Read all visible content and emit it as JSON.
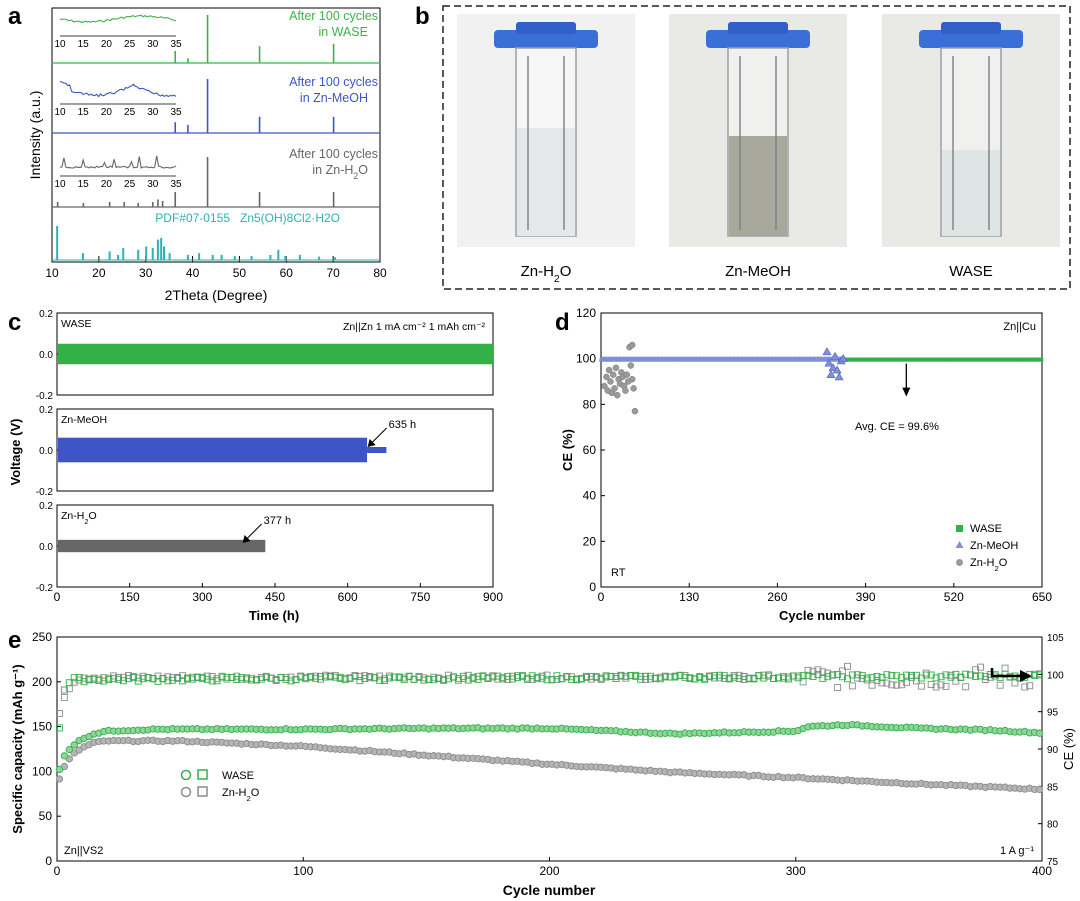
{
  "panel_labels": [
    "a",
    "b",
    "c",
    "d",
    "e"
  ],
  "chart_data": [
    {
      "panel": "a",
      "type": "line",
      "xlabel": "2Theta (Degree)",
      "ylabel": "Intensity (a.u.)",
      "xlim": [
        10,
        80
      ],
      "xticks": [
        "10",
        "20",
        "30",
        "40",
        "50",
        "60",
        "70",
        "80"
      ],
      "inset_xticks": [
        "10",
        "15",
        "20",
        "25",
        "30",
        "35"
      ],
      "series": [
        {
          "name": "After 100 cycles\nin WASE",
          "line1": "After 100 cycles",
          "line2": "in WASE",
          "color": "#3cb34a",
          "peaks": [
            [
              36.3,
              0.25
            ],
            [
              43.2,
              1.0
            ],
            [
              54.3,
              0.35
            ],
            [
              70.1,
              0.4
            ],
            [
              39.0,
              0.1
            ]
          ]
        },
        {
          "name": "After 100 cycles\nin Zn-MeOH",
          "line1": "After 100 cycles",
          "line2": "in Zn-MeOH",
          "color": "#3e55c8",
          "peaks": [
            [
              36.3,
              0.2
            ],
            [
              39.0,
              0.15
            ],
            [
              43.2,
              1.0
            ],
            [
              54.3,
              0.3
            ],
            [
              70.1,
              0.3
            ]
          ]
        },
        {
          "name": "After 100 cycles\nin Zn-H2O",
          "line1": "After 100 cycles",
          "line2": "in Zn-H",
          "sub": "2",
          "line2b": "O",
          "color": "#666666",
          "peaks": [
            [
              11.2,
              0.1
            ],
            [
              16.7,
              0.08
            ],
            [
              22.3,
              0.1
            ],
            [
              25.4,
              0.1
            ],
            [
              28.4,
              0.08
            ],
            [
              31.5,
              0.1
            ],
            [
              32.6,
              0.15
            ],
            [
              33.6,
              0.12
            ],
            [
              36.3,
              0.3
            ],
            [
              43.2,
              1.0
            ],
            [
              54.3,
              0.3
            ],
            [
              70.1,
              0.3
            ]
          ]
        }
      ],
      "reference": {
        "name": "PDF#07-0155",
        "formula": "Zn5(OH)8Cl2·H2O",
        "color": "#2ab3b3",
        "peaks": [
          [
            11.1,
            1.0
          ],
          [
            16.6,
            0.2
          ],
          [
            22.3,
            0.25
          ],
          [
            24.1,
            0.15
          ],
          [
            25.2,
            0.35
          ],
          [
            28.4,
            0.3
          ],
          [
            30.1,
            0.4
          ],
          [
            31.5,
            0.35
          ],
          [
            32.6,
            0.6
          ],
          [
            33.3,
            0.65
          ],
          [
            33.9,
            0.4
          ],
          [
            35.1,
            0.2
          ],
          [
            39.0,
            0.15
          ],
          [
            41.4,
            0.2
          ],
          [
            44.3,
            0.15
          ],
          [
            46.2,
            0.15
          ],
          [
            49.0,
            0.12
          ],
          [
            52.6,
            0.12
          ],
          [
            56.6,
            0.15
          ],
          [
            58.3,
            0.3
          ],
          [
            59.8,
            0.12
          ],
          [
            62.9,
            0.15
          ],
          [
            67.0,
            0.1
          ],
          [
            70.4,
            0.08
          ]
        ]
      }
    },
    {
      "panel": "c",
      "type": "line",
      "xlabel": "Time (h)",
      "ylabel": "Voltage (V)",
      "xlim": [
        0,
        900
      ],
      "ylim": [
        -0.2,
        0.2
      ],
      "xticks": [
        "0",
        "150",
        "300",
        "450",
        "600",
        "750",
        "900"
      ],
      "yticks": [
        "0.2",
        "0.0",
        "-0.2"
      ],
      "condition": "Zn||Zn   1 mA cm⁻²  1 mAh cm⁻²",
      "series": [
        {
          "name": "WASE",
          "color": "#34b049",
          "end_h": 900,
          "amplitude": 0.05
        },
        {
          "name": "Zn-MeOH",
          "color": "#3e55c8",
          "end_h": 640,
          "amplitude": 0.06,
          "annotation": "635 h",
          "fail_h": 635,
          "tail_end_h": 680
        },
        {
          "name": "Zn-H2O",
          "label_main": "Zn-H",
          "label_sub": "2",
          "label_tail": "O",
          "color": "#666666",
          "end_h": 430,
          "amplitude": 0.03,
          "annotation": "377 h",
          "fail_h": 377
        }
      ]
    },
    {
      "panel": "d",
      "type": "scatter",
      "xlabel": "Cycle number",
      "ylabel": "CE (%)",
      "xlim": [
        0,
        650
      ],
      "ylim": [
        0,
        120
      ],
      "xticks": [
        "0",
        "130",
        "260",
        "390",
        "520",
        "650"
      ],
      "yticks": [
        "0",
        "20",
        "40",
        "60",
        "80",
        "100",
        "120"
      ],
      "corner_label": "Zn||Cu",
      "temp_label": "RT",
      "annotation": "Avg. CE = 99.6%",
      "annotation_arrow_x": 450,
      "series": [
        {
          "name": "WASE",
          "label_main": "WASE",
          "color": "#34b049",
          "marker": "square",
          "value": 99.6,
          "x_end": 650
        },
        {
          "name": "Zn-MeOH",
          "label_main": "Zn-MeOH",
          "color": "#7f8fd8",
          "marker": "triangle",
          "value": 99.8,
          "x_end": 360,
          "scatter_points": [
            [
              333,
              103
            ],
            [
              336,
              98
            ],
            [
              339,
              93
            ],
            [
              342,
              96
            ],
            [
              345,
              101
            ],
            [
              348,
              95
            ],
            [
              351,
              92
            ],
            [
              354,
              99
            ],
            [
              357,
              100
            ]
          ]
        },
        {
          "name": "Zn-H2O",
          "label_main": "Zn-H",
          "label_sub": "2",
          "label_tail": "O",
          "color": "#9a9a9a",
          "marker": "circle",
          "value": 99,
          "x_end": 50,
          "scatter_points": [
            [
              5,
              88
            ],
            [
              8,
              92
            ],
            [
              10,
              86
            ],
            [
              12,
              95
            ],
            [
              14,
              90
            ],
            [
              16,
              85
            ],
            [
              18,
              93
            ],
            [
              20,
              87
            ],
            [
              22,
              96
            ],
            [
              24,
              84
            ],
            [
              26,
              91
            ],
            [
              28,
              89
            ],
            [
              30,
              94
            ],
            [
              32,
              92
            ],
            [
              34,
              88
            ],
            [
              36,
              86
            ],
            [
              38,
              93
            ],
            [
              40,
              90
            ],
            [
              42,
              105
            ],
            [
              44,
              97
            ],
            [
              46,
              91
            ],
            [
              48,
              87
            ],
            [
              50,
              77
            ],
            [
              46,
              106
            ]
          ]
        }
      ]
    },
    {
      "panel": "e",
      "type": "scatter",
      "xlabel": "Cycle number",
      "ylabel": "Specific capacity (mAh g⁻¹)",
      "y2label": "CE (%)",
      "xlim": [
        0,
        400
      ],
      "ylim": [
        0,
        250
      ],
      "y2lim": [
        75,
        105
      ],
      "xticks": [
        "0",
        "100",
        "200",
        "300",
        "400"
      ],
      "yticks": [
        "0",
        "50",
        "100",
        "150",
        "200",
        "250"
      ],
      "y2ticks": [
        "75",
        "80",
        "85",
        "90",
        "95",
        "100",
        "105"
      ],
      "corner_label": "Zn||VS2",
      "rate_label": "1 A g⁻¹",
      "series": [
        {
          "name": "WASE",
          "label_main": "WASE",
          "color": "#34b049",
          "capacity": [
            [
              1,
              102
            ],
            [
              3,
              118
            ],
            [
              6,
              128
            ],
            [
              10,
              136
            ],
            [
              15,
              142
            ],
            [
              20,
              145
            ],
            [
              40,
              147
            ],
            [
              100,
              147
            ],
            [
              150,
              148
            ],
            [
              200,
              148
            ],
            [
              250,
              142
            ],
            [
              300,
              145
            ],
            [
              305,
              150
            ],
            [
              320,
              152
            ],
            [
              350,
              148
            ],
            [
              380,
              146
            ],
            [
              400,
              143
            ]
          ],
          "ce": [
            [
              1,
              93
            ],
            [
              3,
              98
            ],
            [
              6,
              99.3
            ],
            [
              400,
              99.8
            ]
          ]
        },
        {
          "name": "Zn-H2O",
          "label_main": "Zn-H",
          "label_sub": "2",
          "label_tail": "O",
          "color": "#8c8c8c",
          "capacity": [
            [
              1,
              92
            ],
            [
              3,
              105
            ],
            [
              6,
              118
            ],
            [
              10,
              126
            ],
            [
              15,
              132
            ],
            [
              20,
              134
            ],
            [
              50,
              134
            ],
            [
              100,
              128
            ],
            [
              150,
              118
            ],
            [
              200,
              108
            ],
            [
              250,
              99
            ],
            [
              300,
              93
            ],
            [
              350,
              86
            ],
            [
              400,
              80
            ]
          ],
          "ce": [
            [
              1,
              95
            ],
            [
              3,
              97
            ],
            [
              6,
              99
            ],
            [
              10,
              99.6
            ],
            [
              400,
              99.6
            ]
          ]
        }
      ]
    }
  ],
  "photo_panel": {
    "panel": "b",
    "vials": [
      {
        "label_main": "Zn-H",
        "label_sub": "2",
        "label_tail": "O",
        "liquid": "clear-gel"
      },
      {
        "label_main": "Zn-MeOH",
        "label_sub": "",
        "label_tail": "",
        "liquid": "turbid"
      },
      {
        "label_main": "WASE",
        "label_sub": "",
        "label_tail": "",
        "liquid": "clear"
      }
    ]
  },
  "colors": {
    "wase": "#34b049",
    "meoh": "#3e55c8",
    "h2o": "#666666",
    "ref": "#2ab3b3",
    "cap_blue": "#1f4fbf"
  }
}
